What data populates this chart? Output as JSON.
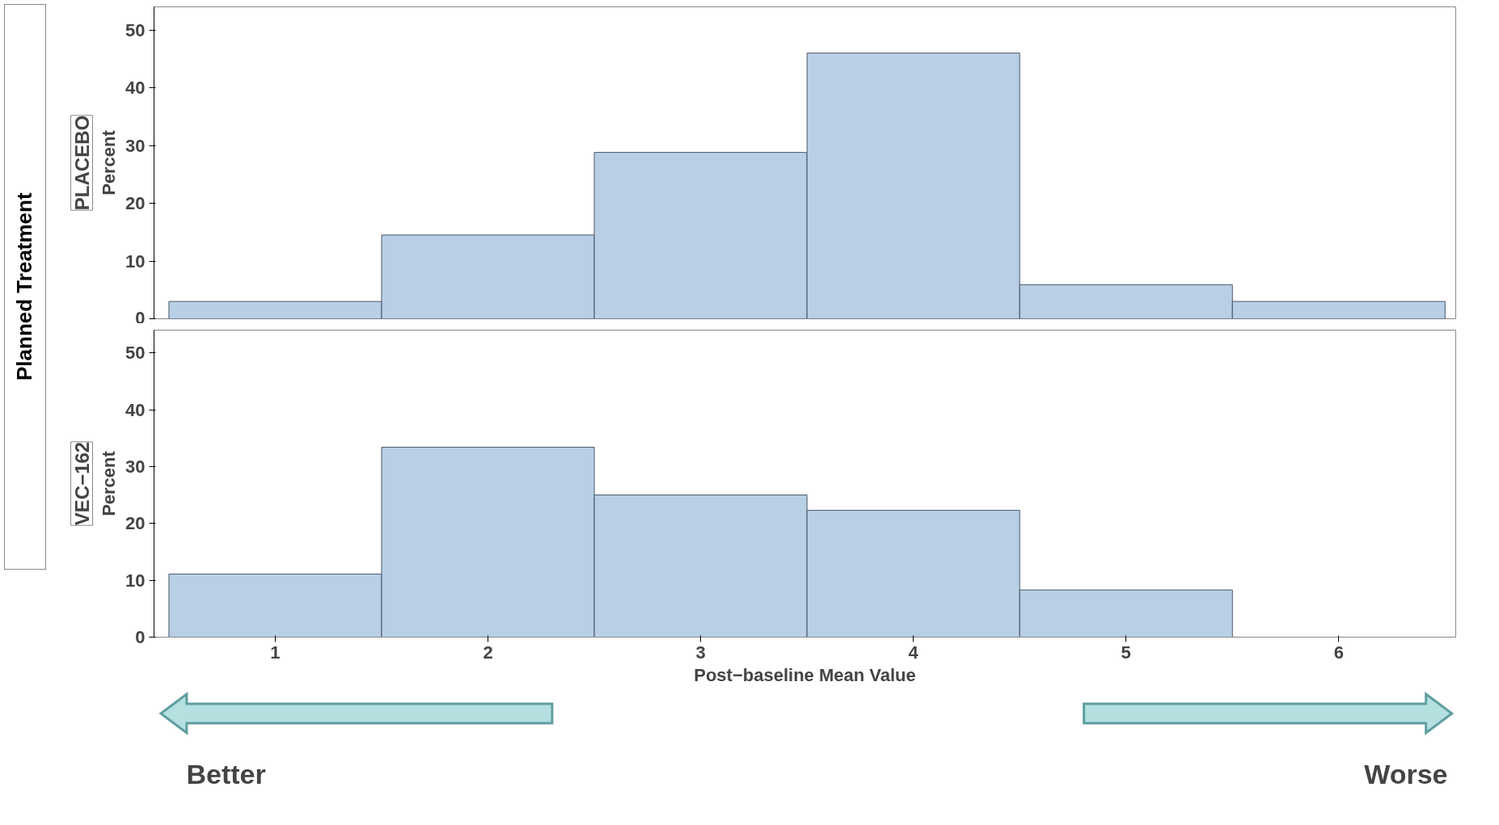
{
  "chart_data": [
    {
      "type": "histogram",
      "title": "PLACEBO",
      "ylabel": "Percent",
      "annotations": [
        "Planned Treatment"
      ],
      "bins": [
        0.5,
        1.5,
        2.5,
        3.5,
        4.5,
        5.5,
        6.5
      ],
      "values": [
        3.0,
        14.5,
        28.8,
        46.0,
        5.9,
        3.0
      ],
      "color": "#b8cfe6",
      "xlim": [
        0.43,
        6.55
      ],
      "ylim": [
        0,
        54
      ],
      "xticks": [
        1,
        2,
        3,
        4,
        5,
        6
      ],
      "yticks": [
        0,
        10,
        20,
        30,
        40,
        50
      ],
      "tick_labels": "y",
      "grid": false
    },
    {
      "type": "histogram",
      "title": "VEC−162",
      "ylabel": "Percent",
      "xlabel": "Post−baseline Mean Value",
      "annotations": [
        "Better",
        "Worse"
      ],
      "bins": [
        0.5,
        1.5,
        2.5,
        3.5,
        4.5,
        5.5,
        6.5
      ],
      "values": [
        11.1,
        33.4,
        25.0,
        22.3,
        8.3,
        0
      ],
      "color": "#b8cfe6",
      "xlim": [
        0.43,
        6.55
      ],
      "ylim": [
        0,
        54
      ],
      "xticks": [
        1,
        2,
        3,
        4,
        5,
        6
      ],
      "yticks": [
        0,
        10,
        20,
        30,
        40,
        50
      ],
      "grid": false
    }
  ]
}
